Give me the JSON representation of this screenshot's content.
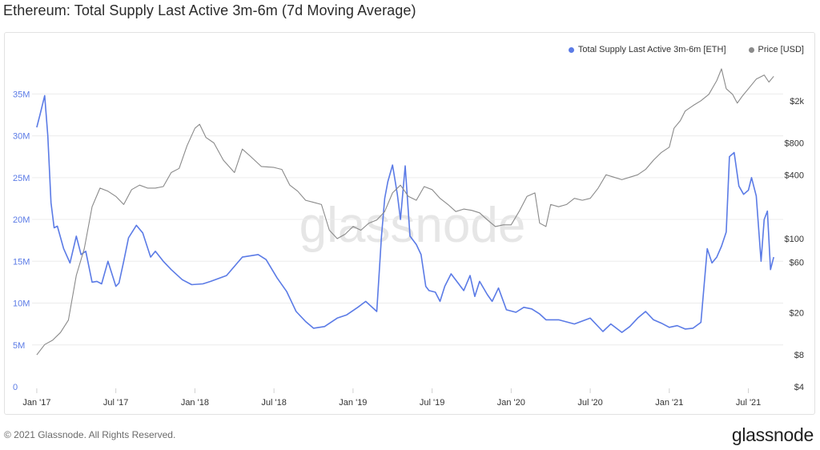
{
  "title": "Ethereum: Total Supply Last Active 3m-6m (7d Moving Average)",
  "footer": {
    "copyright": "© 2021 Glassnode. All Rights Reserved.",
    "logo": "glassnode"
  },
  "watermark": "glassnode",
  "colors": {
    "supply": "#5b7be6",
    "price": "#8a8a8a",
    "left_axis": "#5b7be6",
    "right_axis": "#333333"
  },
  "chart_data": {
    "type": "line",
    "title": "Ethereum: Total Supply Last Active 3m-6m (7d Moving Average)",
    "x_ticks": [
      "Jan '17",
      "Jul '17",
      "Jan '18",
      "Jul '18",
      "Jan '19",
      "Jul '19",
      "Jan '20",
      "Jul '20",
      "Jan '21",
      "Jul '21"
    ],
    "y_left_ticks": [
      "0",
      "5M",
      "10M",
      "15M",
      "20M",
      "25M",
      "30M",
      "35M"
    ],
    "y_right_ticks": [
      "$4",
      "$8",
      "$20",
      "$60",
      "$100",
      "$400",
      "$800",
      "$2k"
    ],
    "ylim_left": [
      0,
      38000000
    ],
    "ylim_right": [
      4,
      4000
    ],
    "xlim": [
      2016.97,
      2021.72
    ],
    "legend": [
      {
        "name": "Total Supply Last Active 3m-6m [ETH]",
        "color": "#5b7be6"
      },
      {
        "name": "Price [USD]",
        "color": "#8a8a8a"
      }
    ],
    "series": [
      {
        "name": "Total Supply Last Active 3m-6m [ETH]",
        "axis": "left",
        "x": [
          2017.0,
          2017.02,
          2017.05,
          2017.07,
          2017.09,
          2017.11,
          2017.13,
          2017.17,
          2017.21,
          2017.25,
          2017.28,
          2017.31,
          2017.35,
          2017.38,
          2017.41,
          2017.45,
          2017.5,
          2017.52,
          2017.55,
          2017.58,
          2017.63,
          2017.67,
          2017.72,
          2017.75,
          2017.8,
          2017.85,
          2017.92,
          2017.98,
          2018.05,
          2018.1,
          2018.2,
          2018.3,
          2018.4,
          2018.45,
          2018.52,
          2018.58,
          2018.64,
          2018.7,
          2018.75,
          2018.82,
          2018.9,
          2018.96,
          2019.03,
          2019.08,
          2019.15,
          2019.18,
          2019.2,
          2019.22,
          2019.25,
          2019.28,
          2019.3,
          2019.33,
          2019.36,
          2019.4,
          2019.43,
          2019.46,
          2019.48,
          2019.52,
          2019.55,
          2019.58,
          2019.62,
          2019.66,
          2019.7,
          2019.74,
          2019.77,
          2019.8,
          2019.85,
          2019.88,
          2019.92,
          2019.97,
          2020.03,
          2020.08,
          2020.13,
          2020.18,
          2020.22,
          2020.3,
          2020.4,
          2020.5,
          2020.58,
          2020.63,
          2020.7,
          2020.75,
          2020.8,
          2020.85,
          2020.9,
          2020.95,
          2021.0,
          2021.05,
          2021.1,
          2021.15,
          2021.2,
          2021.24,
          2021.27,
          2021.3,
          2021.33,
          2021.36,
          2021.38,
          2021.41,
          2021.44,
          2021.47,
          2021.5,
          2021.52,
          2021.55,
          2021.58,
          2021.6,
          2021.62,
          2021.64,
          2021.66
        ],
        "y": [
          31000000,
          32500000,
          34800000,
          30000000,
          22000000,
          19000000,
          19200000,
          16500000,
          14800000,
          18000000,
          15800000,
          16200000,
          12500000,
          12600000,
          12300000,
          15000000,
          12000000,
          12400000,
          15000000,
          17800000,
          19300000,
          18400000,
          15500000,
          16200000,
          15000000,
          14000000,
          12800000,
          12200000,
          12300000,
          12600000,
          13300000,
          15500000,
          15800000,
          15200000,
          13000000,
          11400000,
          9000000,
          7800000,
          7000000,
          7200000,
          8200000,
          8600000,
          9500000,
          10200000,
          9000000,
          18000000,
          22500000,
          24500000,
          26500000,
          23000000,
          20000000,
          26400000,
          18000000,
          17000000,
          15800000,
          12000000,
          11500000,
          11300000,
          10200000,
          12000000,
          13500000,
          12500000,
          11500000,
          13300000,
          10800000,
          12600000,
          11000000,
          10200000,
          11800000,
          9200000,
          8900000,
          9500000,
          9300000,
          8700000,
          8000000,
          8000000,
          7500000,
          8200000,
          6600000,
          7500000,
          6500000,
          7200000,
          8200000,
          9000000,
          8000000,
          7600000,
          7100000,
          7300000,
          6900000,
          7000000,
          7700000,
          16500000,
          14800000,
          15500000,
          16800000,
          18500000,
          27500000,
          28000000,
          24000000,
          23000000,
          23500000,
          25000000,
          22800000,
          15000000,
          20000000,
          21000000,
          14000000,
          15500000
        ]
      },
      {
        "name": "Price [USD]",
        "axis": "right",
        "x": [
          2017.0,
          2017.05,
          2017.1,
          2017.15,
          2017.2,
          2017.25,
          2017.3,
          2017.35,
          2017.4,
          2017.45,
          2017.5,
          2017.55,
          2017.6,
          2017.65,
          2017.7,
          2017.75,
          2017.8,
          2017.85,
          2017.9,
          2017.95,
          2018.0,
          2018.03,
          2018.07,
          2018.12,
          2018.18,
          2018.25,
          2018.3,
          2018.35,
          2018.42,
          2018.5,
          2018.55,
          2018.6,
          2018.65,
          2018.7,
          2018.75,
          2018.8,
          2018.85,
          2018.9,
          2018.95,
          2019.0,
          2019.05,
          2019.1,
          2019.15,
          2019.2,
          2019.25,
          2019.3,
          2019.35,
          2019.4,
          2019.45,
          2019.5,
          2019.55,
          2019.6,
          2019.65,
          2019.7,
          2019.75,
          2019.8,
          2019.85,
          2019.9,
          2019.95,
          2020.0,
          2020.05,
          2020.1,
          2020.15,
          2020.18,
          2020.22,
          2020.25,
          2020.3,
          2020.35,
          2020.4,
          2020.45,
          2020.5,
          2020.55,
          2020.6,
          2020.65,
          2020.7,
          2020.75,
          2020.8,
          2020.85,
          2020.9,
          2020.95,
          2021.0,
          2021.03,
          2021.07,
          2021.1,
          2021.15,
          2021.2,
          2021.25,
          2021.3,
          2021.33,
          2021.36,
          2021.4,
          2021.43,
          2021.46,
          2021.5,
          2021.55,
          2021.6,
          2021.63,
          2021.66
        ],
        "y": [
          8,
          10,
          11,
          13,
          17,
          45,
          80,
          200,
          300,
          280,
          250,
          210,
          290,
          320,
          300,
          300,
          310,
          420,
          460,
          750,
          1100,
          1200,
          900,
          800,
          550,
          420,
          700,
          600,
          480,
          470,
          450,
          320,
          280,
          230,
          220,
          210,
          120,
          100,
          110,
          130,
          120,
          140,
          150,
          180,
          270,
          320,
          250,
          230,
          310,
          290,
          240,
          210,
          180,
          190,
          185,
          175,
          150,
          130,
          135,
          135,
          180,
          250,
          270,
          140,
          130,
          210,
          200,
          210,
          240,
          230,
          240,
          300,
          400,
          380,
          360,
          380,
          400,
          450,
          550,
          650,
          730,
          1100,
          1300,
          1600,
          1800,
          2000,
          2300,
          3100,
          4000,
          2600,
          2300,
          1900,
          2200,
          2600,
          3200,
          3500,
          3000,
          3400
        ]
      }
    ]
  }
}
